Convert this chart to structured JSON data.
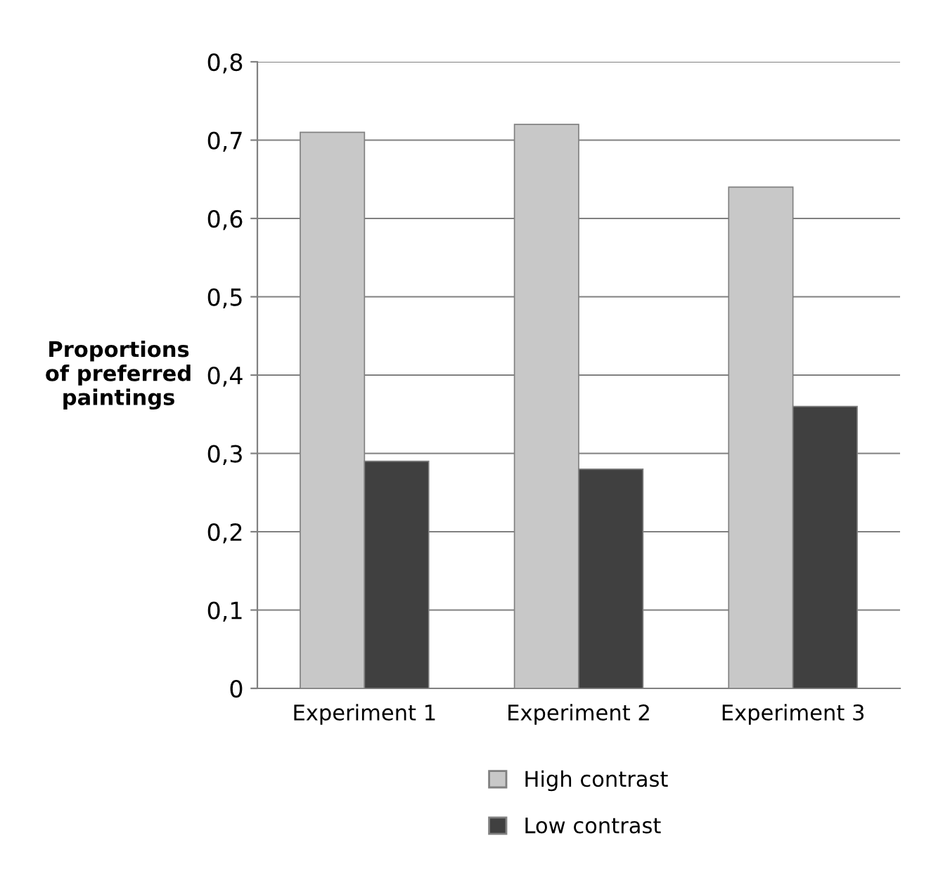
{
  "chart_data": {
    "type": "bar",
    "ylabel": "Proportions\nof preferred\npaintings",
    "categories": [
      "Experiment 1",
      "Experiment 2",
      "Experiment 3"
    ],
    "series": [
      {
        "name": "High contrast",
        "color": "#c8c8c8",
        "values": [
          0.71,
          0.72,
          0.64
        ]
      },
      {
        "name": "Low contrast",
        "color": "#404040",
        "values": [
          0.29,
          0.28,
          0.36
        ]
      }
    ],
    "ylim": [
      0,
      0.8
    ],
    "yticks": [
      0,
      {
        "value": 0.1,
        "label": "0,1"
      },
      {
        "value": 0.2,
        "label": "0,2"
      },
      {
        "value": 0.3,
        "label": "0,3"
      },
      {
        "value": 0.4,
        "label": "0,4"
      },
      {
        "value": 0.5,
        "label": "0,5"
      },
      {
        "value": 0.6,
        "label": "0,6"
      },
      {
        "value": 0.7,
        "label": "0,7"
      },
      {
        "value": 0.8,
        "label": "0,8"
      }
    ],
    "grid": "y",
    "legend": "bottom"
  }
}
